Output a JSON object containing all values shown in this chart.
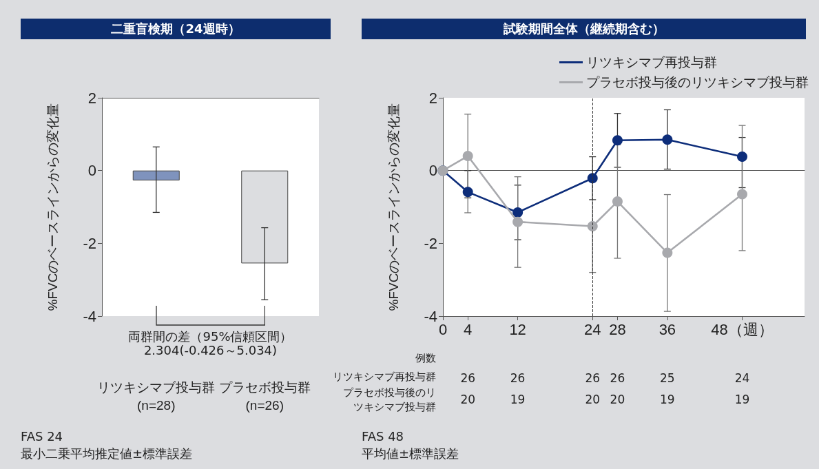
{
  "chart_data": [
    {
      "type": "bar",
      "title": "二重盲検期（24週時）",
      "ylabel": "%FVCのベースラインからの変化量",
      "categories": [
        "リツキシマブ投与群\n(n=28)",
        "プラセボ投与群\n(n=26)"
      ],
      "values": [
        -0.27,
        -2.55
      ],
      "colors": [
        "#7f93bd",
        "#dcdde0"
      ],
      "errors": [
        [
          -1.15,
          0.65
        ],
        [
          -3.55,
          -1.57
        ]
      ],
      "ylim": [
        -4,
        2
      ],
      "yticks": [
        -4,
        -2,
        0,
        2
      ],
      "grid": false,
      "legend": false,
      "annotations": [
        "両群間の差（95%信頼区間）\n2.304(-0.426～5.034)",
        "FAS 24",
        "最小二乗平均推定値±標準誤差"
      ]
    },
    {
      "type": "line",
      "title": "試験期間全体（継続期含む）",
      "ylabel": "%FVCのベースラインからの変化量",
      "series": [
        {
          "name": "リツキシマブ再投与群",
          "color": "#0d2d7a",
          "x": [
            0,
            4,
            12,
            24,
            28,
            36,
            48
          ],
          "values": [
            0,
            -0.59,
            -1.15,
            -0.21,
            0.83,
            0.85,
            0.38
          ],
          "errors": [
            null,
            [
              -0.75,
              0
            ],
            [
              -1.9,
              -0.4
            ],
            [
              -0.8,
              0.38
            ],
            [
              0.09,
              1.57
            ],
            [
              0.04,
              1.67
            ],
            [
              -0.47,
              0.91
            ]
          ]
        },
        {
          "name": "プラセボ投与後のリツキシマブ投与群",
          "color": "#a8a9ad",
          "x": [
            0,
            4,
            12,
            24,
            28,
            36,
            48
          ],
          "values": [
            0,
            0.4,
            -1.41,
            -1.53,
            -0.85,
            -2.26,
            -0.65
          ],
          "errors": [
            null,
            [
              -1.16,
              1.55
            ],
            [
              -2.66,
              -0.17
            ],
            [
              -2.8,
              -0.26
            ],
            [
              -2.41,
              0.71
            ],
            [
              -3.87,
              -0.66
            ],
            [
              -2.2,
              1.24
            ]
          ]
        }
      ],
      "xlim": [
        0,
        58
      ],
      "xticks": [
        0,
        4,
        12,
        24,
        28,
        36,
        {
          "value": 48,
          "label": "48（週）"
        }
      ],
      "ylim": [
        -4,
        2
      ],
      "yticks": [
        -4,
        -2,
        0,
        2
      ],
      "grid": false,
      "legend": "top right",
      "marker": "circle",
      "line_style": "solid",
      "ref_lines": [
        {
          "axis": "x",
          "value": 24,
          "label": null,
          "line_style": "dashed",
          "color": "#333333"
        }
      ],
      "annotations": [
        "例数",
        "リツキシマブ再投与群",
        "プラセボ投与後のリツキシマブ投与群",
        "26",
        "26",
        "26",
        "26",
        "25",
        "24",
        "20",
        "19",
        "20",
        "20",
        "19",
        "19",
        "FAS 48",
        "平均値±標準誤差"
      ]
    }
  ]
}
